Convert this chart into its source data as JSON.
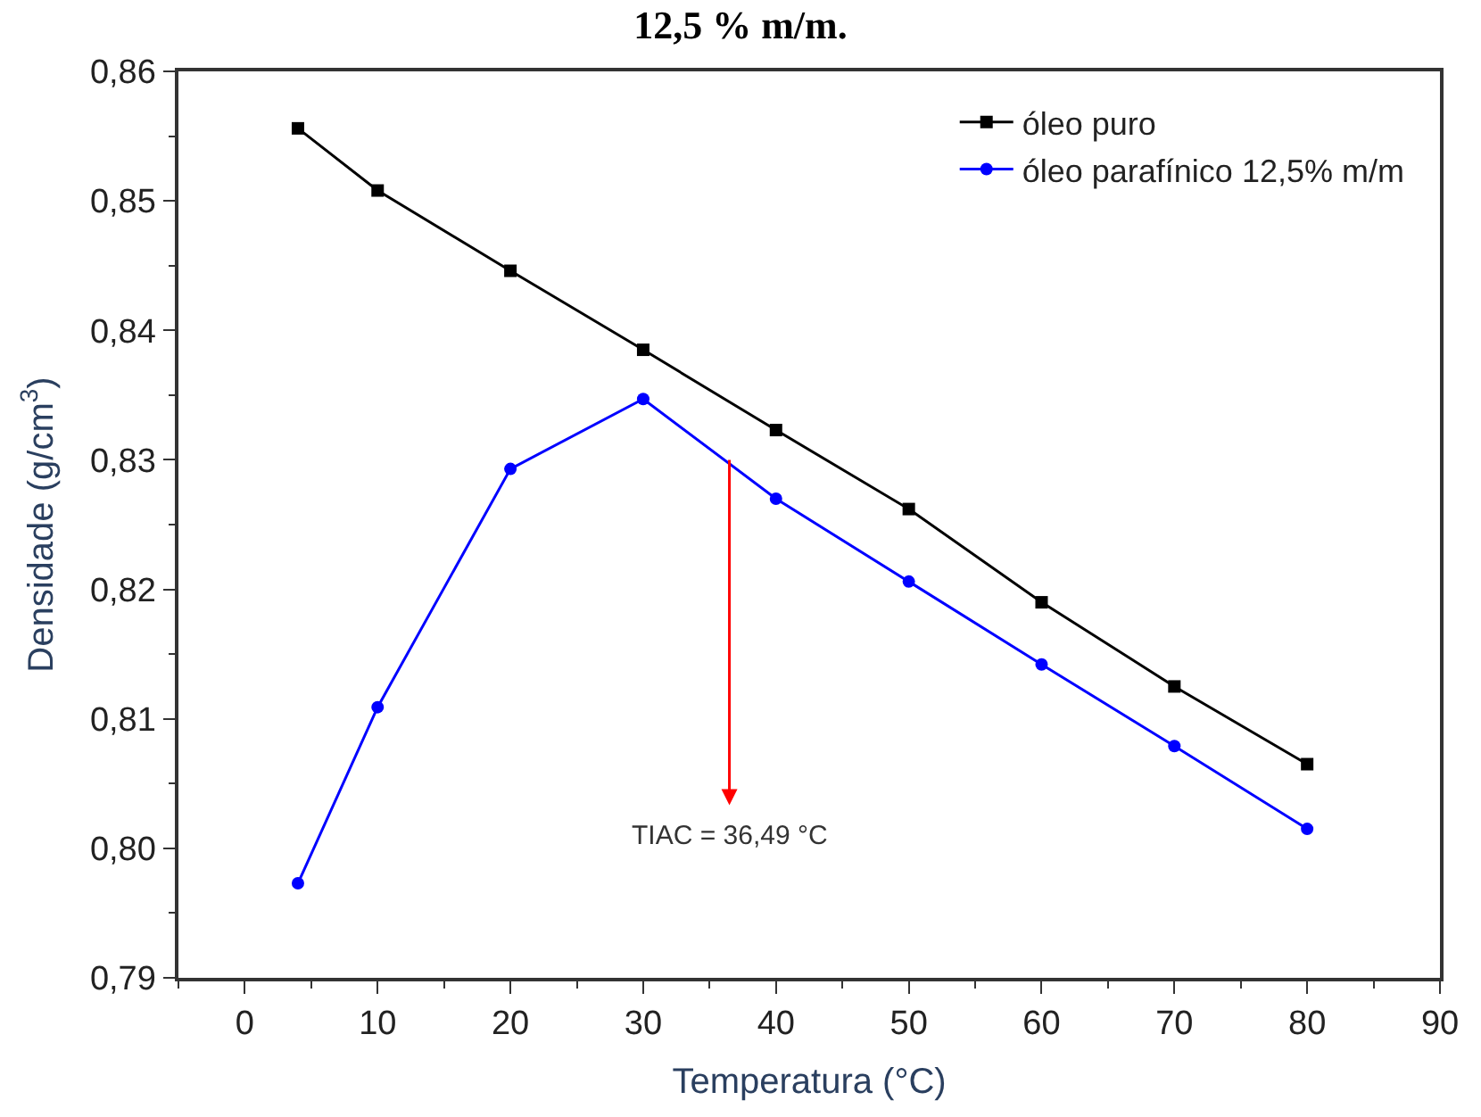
{
  "chart_data": {
    "type": "line",
    "title": "12,5 % m/m.",
    "xlabel": "Temperatura (°C)",
    "ylabel": "Densidade (g/cm$^{3}$)",
    "x": [
      4,
      10,
      20,
      30,
      40,
      50,
      60,
      70,
      80
    ],
    "series": [
      {
        "name": "óleo puro",
        "color": "#000000",
        "marker": "square",
        "values": [
          0.8556,
          0.8508,
          0.8446,
          0.8385,
          0.8323,
          0.8262,
          0.819,
          0.8125,
          0.8065
        ]
      },
      {
        "name": "óleo parafínico 12,5% m/m",
        "color": "#0000ff",
        "marker": "circle",
        "values": [
          0.7973,
          0.8109,
          0.8293,
          0.8347,
          0.827,
          0.8206,
          0.8142,
          0.8079,
          0.8015
        ]
      }
    ],
    "annotations": [
      {
        "text": "TIAC = 36,49 °C",
        "x": 36.49,
        "y": 0.83
      }
    ],
    "xlim": [
      -5,
      90
    ],
    "xticks": [
      0,
      10,
      20,
      30,
      40,
      50,
      60,
      70,
      80,
      90
    ],
    "ylim": [
      0.79,
      0.86
    ],
    "yticks": [
      {
        "value": 0.79,
        "label": "0,79"
      },
      {
        "value": 0.8,
        "label": "0,80"
      },
      {
        "value": 0.81,
        "label": "0,81"
      },
      {
        "value": 0.82,
        "label": "0,82"
      },
      {
        "value": 0.83,
        "label": "0,83"
      },
      {
        "value": 0.84,
        "label": "0,84"
      },
      {
        "value": 0.85,
        "label": "0,85"
      },
      {
        "value": 0.86,
        "label": "0,86"
      }
    ],
    "legend": "top right",
    "line_style": "solid"
  }
}
